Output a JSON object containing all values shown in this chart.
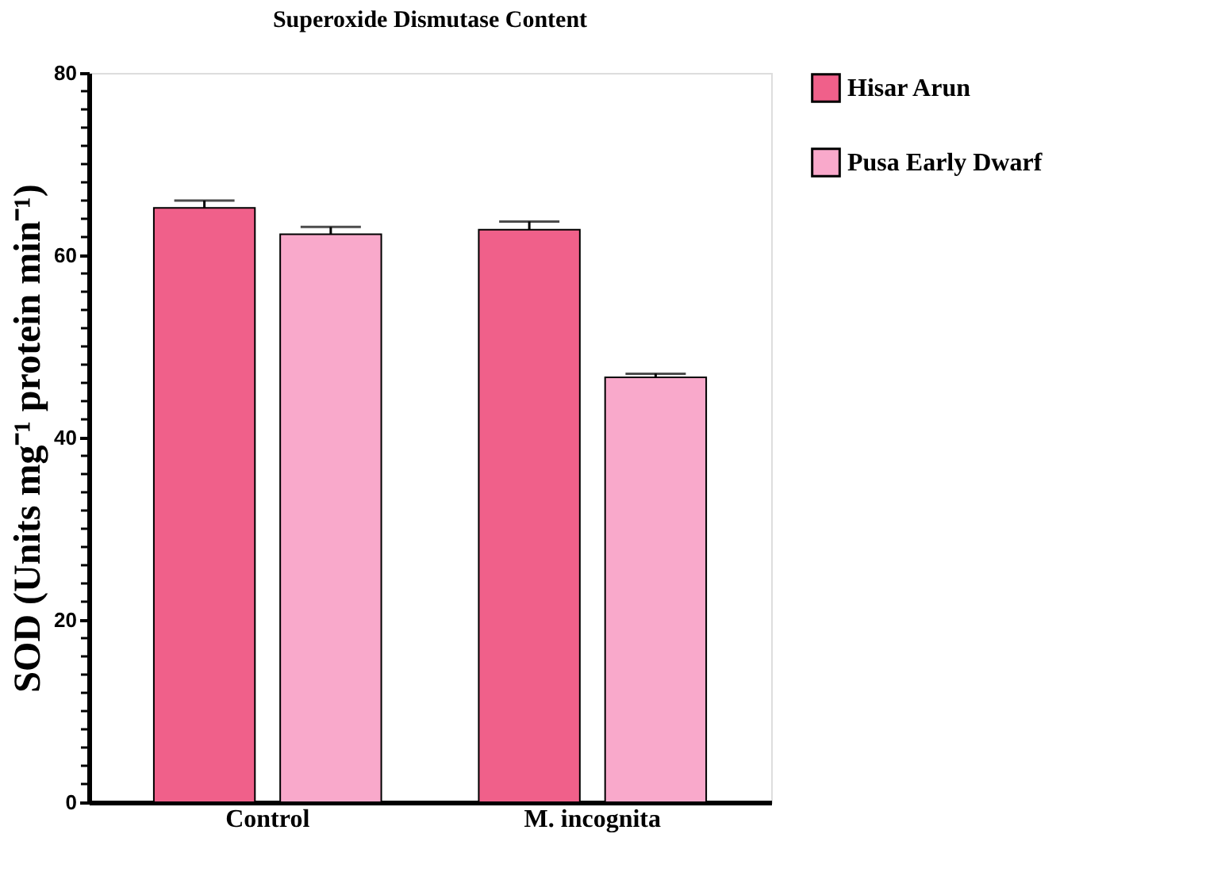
{
  "chart_data": {
    "type": "bar",
    "title": "Superoxide Dismutase Content",
    "ylabel": "SOD (Units mg⁻¹ protein min⁻¹)",
    "categories": [
      "Control",
      "M. incognita"
    ],
    "series": [
      {
        "name": "Hisar Arun",
        "color": "#f0608a",
        "values": [
          65.2,
          62.8
        ],
        "errors": [
          [
            65.2,
            66.0
          ],
          [
            62.8,
            63.7
          ]
        ]
      },
      {
        "name": "Pusa Early Dwarf",
        "color": "#f9a9cb",
        "values": [
          62.3,
          46.6
        ],
        "errors": [
          [
            62.3,
            63.1
          ],
          [
            46.6,
            47.0
          ]
        ]
      }
    ],
    "ylim": [
      0,
      80
    ],
    "yticks": [
      0,
      {
        "value": 2,
        "label": null
      },
      {
        "value": 4,
        "label": null
      },
      {
        "value": 6,
        "label": null
      },
      {
        "value": 8,
        "label": null
      },
      {
        "value": 10,
        "label": null
      },
      {
        "value": 12,
        "label": null
      },
      {
        "value": 14,
        "label": null
      },
      {
        "value": 16,
        "label": null
      },
      {
        "value": 18,
        "label": null
      },
      20,
      {
        "value": 22,
        "label": null
      },
      {
        "value": 24,
        "label": null
      },
      {
        "value": 26,
        "label": null
      },
      {
        "value": 28,
        "label": null
      },
      {
        "value": 30,
        "label": null
      },
      {
        "value": 32,
        "label": null
      },
      {
        "value": 34,
        "label": null
      },
      {
        "value": 36,
        "label": null
      },
      {
        "value": 38,
        "label": null
      },
      40,
      {
        "value": 42,
        "label": null
      },
      {
        "value": 44,
        "label": null
      },
      {
        "value": 46,
        "label": null
      },
      {
        "value": 48,
        "label": null
      },
      {
        "value": 50,
        "label": null
      },
      {
        "value": 52,
        "label": null
      },
      {
        "value": 54,
        "label": null
      },
      {
        "value": 56,
        "label": null
      },
      {
        "value": 58,
        "label": null
      },
      60,
      {
        "value": 62,
        "label": null
      },
      {
        "value": 64,
        "label": null
      },
      {
        "value": 66,
        "label": null
      },
      {
        "value": 68,
        "label": null
      },
      {
        "value": 70,
        "label": null
      },
      {
        "value": 72,
        "label": null
      },
      {
        "value": 74,
        "label": null
      },
      {
        "value": 76,
        "label": null
      },
      {
        "value": 78,
        "label": null
      },
      80
    ],
    "grid": false,
    "legend": "top right"
  }
}
